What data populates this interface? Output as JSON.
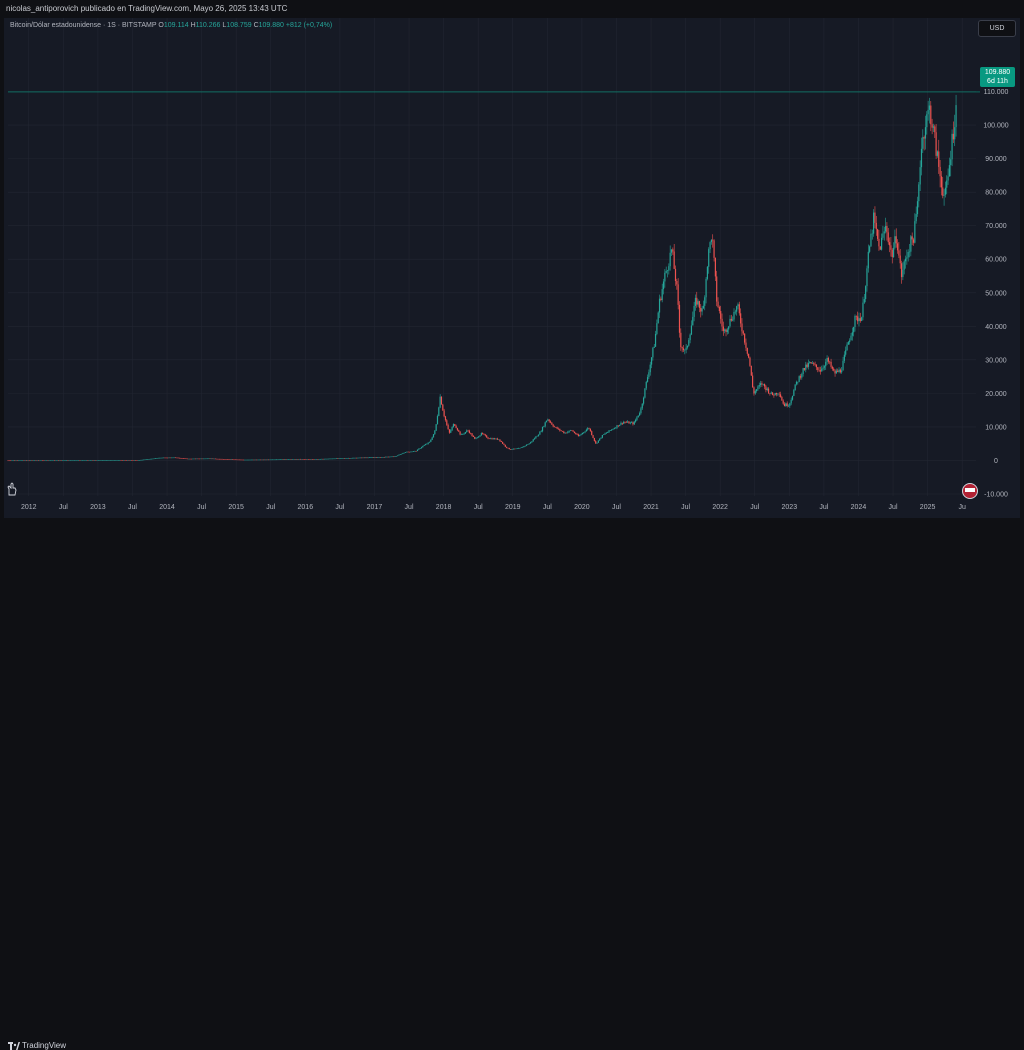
{
  "header": {
    "publisher_text": "nicolas_antiporovich publicado en TradingView.com, Mayo 26, 2025 13:43 UTC"
  },
  "legend": {
    "symbol": "Bitcoin/Dólar estadounidense · 1S · BITSTAMP",
    "o_label": "O",
    "o_value": "109.114",
    "h_label": "H",
    "h_value": "110.266",
    "l_label": "L",
    "l_value": "108.759",
    "c_label": "C",
    "c_value": "109.880",
    "change": "+812 (+0,74%)"
  },
  "currency_button": "USD",
  "price_tag": {
    "price": "109.880",
    "countdown": "6d 11h"
  },
  "footer": {
    "brand": "TradingView"
  },
  "icons": [
    "usd-currency-button",
    "us-flag-icon",
    "hand-icon",
    "tradingview-logo-icon"
  ],
  "colors": {
    "up": "#26a69a",
    "down": "#ef5350",
    "background": "#161a25",
    "grid": "#222632",
    "tag": "#089981"
  },
  "chart_data": {
    "type": "candlestick",
    "title": "",
    "xlabel": "",
    "ylabel": "",
    "ylim": [
      -10000,
      120000
    ],
    "xlim": [
      2011.7,
      2025.7
    ],
    "grid": true,
    "y_ticks": [
      {
        "v": 110000,
        "t": "110.000"
      },
      {
        "v": 100000,
        "t": "100.000"
      },
      {
        "v": 90000,
        "t": "90.000"
      },
      {
        "v": 80000,
        "t": "80.000"
      },
      {
        "v": 70000,
        "t": "70.000"
      },
      {
        "v": 60000,
        "t": "60.000"
      },
      {
        "v": 50000,
        "t": "50.000"
      },
      {
        "v": 40000,
        "t": "40.000"
      },
      {
        "v": 30000,
        "t": "30.000"
      },
      {
        "v": 20000,
        "t": "20.000"
      },
      {
        "v": 10000,
        "t": "10.000"
      },
      {
        "v": 0,
        "t": "0"
      },
      {
        "v": -10000,
        "t": "-10.000"
      }
    ],
    "x_ticks": [
      {
        "v": 2012.0,
        "t": "2012"
      },
      {
        "v": 2012.5,
        "t": "Jul"
      },
      {
        "v": 2013.0,
        "t": "2013"
      },
      {
        "v": 2013.5,
        "t": "Jul"
      },
      {
        "v": 2014.0,
        "t": "2014"
      },
      {
        "v": 2014.5,
        "t": "Jul"
      },
      {
        "v": 2015.0,
        "t": "2015"
      },
      {
        "v": 2015.5,
        "t": "Jul"
      },
      {
        "v": 2016.0,
        "t": "2016"
      },
      {
        "v": 2016.5,
        "t": "Jul"
      },
      {
        "v": 2017.0,
        "t": "2017"
      },
      {
        "v": 2017.5,
        "t": "Jul"
      },
      {
        "v": 2018.0,
        "t": "2018"
      },
      {
        "v": 2018.5,
        "t": "Jul"
      },
      {
        "v": 2019.0,
        "t": "2019"
      },
      {
        "v": 2019.5,
        "t": "Jul"
      },
      {
        "v": 2020.0,
        "t": "2020"
      },
      {
        "v": 2020.5,
        "t": "Jul"
      },
      {
        "v": 2021.0,
        "t": "2021"
      },
      {
        "v": 2021.5,
        "t": "Jul"
      },
      {
        "v": 2022.0,
        "t": "2022"
      },
      {
        "v": 2022.5,
        "t": "Jul"
      },
      {
        "v": 2023.0,
        "t": "2023"
      },
      {
        "v": 2023.5,
        "t": "Jul"
      },
      {
        "v": 2024.0,
        "t": "2024"
      },
      {
        "v": 2024.5,
        "t": "Jul"
      },
      {
        "v": 2025.0,
        "t": "2025"
      },
      {
        "v": 2025.5,
        "t": "Ju"
      }
    ],
    "last_price": 109880,
    "series": [
      {
        "price_path": [
          [
            2011.7,
            5
          ],
          [
            2012.5,
            7
          ],
          [
            2013.0,
            13
          ],
          [
            2013.3,
            120
          ],
          [
            2013.6,
            100
          ],
          [
            2013.9,
            800
          ],
          [
            2014.1,
            900
          ],
          [
            2014.3,
            500
          ],
          [
            2014.6,
            600
          ],
          [
            2014.9,
            330
          ],
          [
            2015.1,
            220
          ],
          [
            2015.5,
            270
          ],
          [
            2015.9,
            430
          ],
          [
            2016.2,
            420
          ],
          [
            2016.5,
            650
          ],
          [
            2016.9,
            900
          ],
          [
            2017.1,
            1000
          ],
          [
            2017.3,
            1200
          ],
          [
            2017.45,
            2500
          ],
          [
            2017.6,
            2800
          ],
          [
            2017.7,
            4300
          ],
          [
            2017.8,
            5500
          ],
          [
            2017.88,
            9000
          ],
          [
            2017.95,
            19000
          ],
          [
            2018.0,
            14000
          ],
          [
            2018.08,
            8000
          ],
          [
            2018.15,
            11000
          ],
          [
            2018.25,
            7500
          ],
          [
            2018.35,
            9000
          ],
          [
            2018.45,
            6400
          ],
          [
            2018.55,
            8000
          ],
          [
            2018.65,
            6600
          ],
          [
            2018.8,
            6300
          ],
          [
            2018.9,
            4000
          ],
          [
            2018.96,
            3300
          ],
          [
            2019.1,
            3600
          ],
          [
            2019.25,
            5200
          ],
          [
            2019.4,
            8500
          ],
          [
            2019.5,
            12500
          ],
          [
            2019.6,
            10000
          ],
          [
            2019.75,
            8200
          ],
          [
            2019.85,
            9000
          ],
          [
            2019.95,
            7200
          ],
          [
            2020.1,
            9800
          ],
          [
            2020.2,
            5000
          ],
          [
            2020.3,
            7500
          ],
          [
            2020.45,
            9500
          ],
          [
            2020.6,
            11500
          ],
          [
            2020.75,
            11000
          ],
          [
            2020.85,
            15000
          ],
          [
            2020.95,
            25000
          ],
          [
            2021.05,
            35000
          ],
          [
            2021.12,
            47000
          ],
          [
            2021.2,
            55000
          ],
          [
            2021.3,
            63000
          ],
          [
            2021.38,
            50000
          ],
          [
            2021.42,
            35000
          ],
          [
            2021.5,
            32000
          ],
          [
            2021.58,
            40000
          ],
          [
            2021.65,
            48000
          ],
          [
            2021.75,
            44000
          ],
          [
            2021.82,
            60000
          ],
          [
            2021.88,
            68000
          ],
          [
            2021.95,
            48000
          ],
          [
            2022.05,
            38000
          ],
          [
            2022.15,
            42000
          ],
          [
            2022.25,
            46000
          ],
          [
            2022.32,
            39000
          ],
          [
            2022.42,
            30000
          ],
          [
            2022.48,
            20000
          ],
          [
            2022.6,
            23000
          ],
          [
            2022.75,
            19500
          ],
          [
            2022.85,
            20500
          ],
          [
            2022.92,
            16500
          ],
          [
            2023.0,
            16800
          ],
          [
            2023.1,
            23000
          ],
          [
            2023.2,
            27000
          ],
          [
            2023.3,
            29000
          ],
          [
            2023.45,
            27000
          ],
          [
            2023.55,
            30000
          ],
          [
            2023.65,
            26000
          ],
          [
            2023.75,
            27000
          ],
          [
            2023.85,
            35000
          ],
          [
            2023.95,
            42000
          ],
          [
            2024.05,
            43000
          ],
          [
            2024.15,
            62000
          ],
          [
            2024.22,
            72000
          ],
          [
            2024.3,
            63000
          ],
          [
            2024.4,
            70000
          ],
          [
            2024.48,
            61000
          ],
          [
            2024.55,
            67000
          ],
          [
            2024.62,
            55000
          ],
          [
            2024.72,
            63000
          ],
          [
            2024.8,
            67000
          ],
          [
            2024.85,
            75000
          ],
          [
            2024.9,
            92000
          ],
          [
            2024.96,
            100000
          ],
          [
            2025.03,
            105000
          ],
          [
            2025.1,
            96000
          ],
          [
            2025.18,
            85000
          ],
          [
            2025.25,
            78000
          ],
          [
            2025.3,
            85000
          ],
          [
            2025.35,
            95000
          ],
          [
            2025.4,
            103000
          ],
          [
            2025.43,
            109880
          ]
        ]
      }
    ]
  }
}
